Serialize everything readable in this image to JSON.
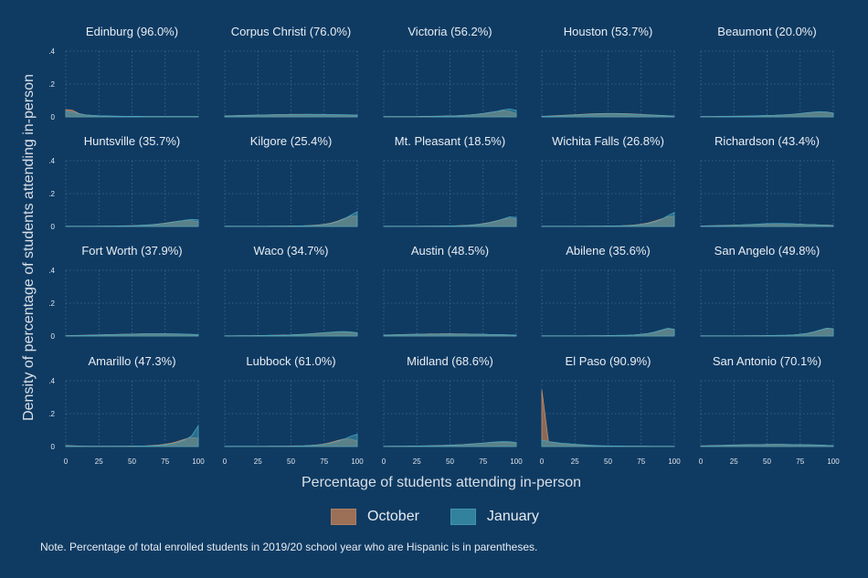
{
  "chart_data": {
    "type": "area",
    "ylabel": "Density of percentage of students attending in-person",
    "xlabel": "Percentage of students attending in-person",
    "xlim": [
      0,
      100
    ],
    "ylim": [
      0,
      0.4
    ],
    "x_ticks": [
      "0",
      "25",
      "50",
      "75",
      "100"
    ],
    "y_ticks": [
      "0",
      ".2",
      ".4"
    ],
    "x_tick_values": [
      0,
      25,
      50,
      75,
      100
    ],
    "y_tick_values": [
      0,
      0.2,
      0.4
    ],
    "grid": true,
    "legend_position": "bottom",
    "series": [
      {
        "name": "October",
        "color": "#b57a55"
      },
      {
        "name": "January",
        "color": "#3a8fa8"
      }
    ],
    "x": [
      0,
      5,
      10,
      15,
      20,
      25,
      30,
      35,
      40,
      45,
      50,
      55,
      60,
      65,
      70,
      75,
      80,
      85,
      90,
      95,
      100
    ],
    "panels": [
      {
        "title": "Edinburg (96.0%)",
        "october": [
          0.045,
          0.04,
          0.02,
          0.012,
          0.008,
          0.006,
          0.005,
          0.004,
          0.003,
          0.003,
          0.002,
          0.002,
          0.002,
          0.002,
          0.002,
          0.002,
          0.002,
          0.002,
          0.002,
          0.002,
          0.002
        ],
        "january": [
          0.035,
          0.03,
          0.018,
          0.012,
          0.009,
          0.007,
          0.006,
          0.005,
          0.004,
          0.003,
          0.003,
          0.003,
          0.002,
          0.002,
          0.002,
          0.002,
          0.002,
          0.002,
          0.002,
          0.002,
          0.002
        ]
      },
      {
        "title": "Corpus Christi (76.0%)",
        "october": [
          0.006,
          0.007,
          0.008,
          0.009,
          0.01,
          0.011,
          0.012,
          0.013,
          0.014,
          0.014,
          0.015,
          0.015,
          0.015,
          0.015,
          0.014,
          0.014,
          0.013,
          0.012,
          0.011,
          0.01,
          0.008
        ],
        "january": [
          0.005,
          0.006,
          0.007,
          0.008,
          0.009,
          0.01,
          0.011,
          0.012,
          0.013,
          0.013,
          0.014,
          0.014,
          0.015,
          0.015,
          0.015,
          0.015,
          0.014,
          0.014,
          0.013,
          0.012,
          0.011
        ]
      },
      {
        "title": "Victoria (56.2%)",
        "october": [
          0.002,
          0.002,
          0.002,
          0.002,
          0.002,
          0.002,
          0.003,
          0.003,
          0.004,
          0.005,
          0.006,
          0.007,
          0.009,
          0.012,
          0.016,
          0.021,
          0.027,
          0.033,
          0.037,
          0.034,
          0.02
        ],
        "january": [
          0.001,
          0.001,
          0.001,
          0.001,
          0.001,
          0.002,
          0.002,
          0.002,
          0.003,
          0.004,
          0.005,
          0.006,
          0.008,
          0.011,
          0.015,
          0.02,
          0.026,
          0.033,
          0.042,
          0.048,
          0.04
        ]
      },
      {
        "title": "Houston (53.7%)",
        "october": [
          0.004,
          0.005,
          0.007,
          0.009,
          0.011,
          0.013,
          0.015,
          0.017,
          0.019,
          0.02,
          0.021,
          0.021,
          0.02,
          0.019,
          0.017,
          0.015,
          0.013,
          0.011,
          0.009,
          0.007,
          0.005
        ],
        "january": [
          0.003,
          0.004,
          0.005,
          0.007,
          0.009,
          0.011,
          0.013,
          0.015,
          0.017,
          0.018,
          0.019,
          0.019,
          0.018,
          0.017,
          0.016,
          0.014,
          0.012,
          0.01,
          0.008,
          0.006,
          0.004
        ]
      },
      {
        "title": "Beaumont (20.0%)",
        "october": [
          0.002,
          0.002,
          0.002,
          0.003,
          0.003,
          0.004,
          0.004,
          0.005,
          0.006,
          0.007,
          0.008,
          0.009,
          0.011,
          0.013,
          0.016,
          0.02,
          0.024,
          0.028,
          0.03,
          0.028,
          0.022
        ],
        "january": [
          0.002,
          0.002,
          0.002,
          0.002,
          0.003,
          0.003,
          0.004,
          0.005,
          0.006,
          0.007,
          0.008,
          0.009,
          0.011,
          0.013,
          0.016,
          0.02,
          0.025,
          0.029,
          0.031,
          0.03,
          0.024
        ]
      },
      {
        "title": "Huntsville (35.7%)",
        "october": [
          0.001,
          0.001,
          0.001,
          0.001,
          0.001,
          0.002,
          0.002,
          0.002,
          0.003,
          0.004,
          0.005,
          0.006,
          0.008,
          0.011,
          0.015,
          0.02,
          0.026,
          0.032,
          0.036,
          0.035,
          0.028
        ],
        "january": [
          0.001,
          0.001,
          0.001,
          0.001,
          0.001,
          0.001,
          0.002,
          0.002,
          0.003,
          0.003,
          0.004,
          0.006,
          0.008,
          0.01,
          0.014,
          0.018,
          0.024,
          0.031,
          0.038,
          0.043,
          0.04
        ]
      },
      {
        "title": "Kilgore (25.4%)",
        "october": [
          0.001,
          0.001,
          0.001,
          0.001,
          0.001,
          0.001,
          0.001,
          0.002,
          0.002,
          0.002,
          0.003,
          0.003,
          0.004,
          0.006,
          0.009,
          0.013,
          0.02,
          0.032,
          0.048,
          0.062,
          0.065
        ],
        "january": [
          0.001,
          0.001,
          0.001,
          0.001,
          0.001,
          0.001,
          0.001,
          0.001,
          0.002,
          0.002,
          0.002,
          0.003,
          0.004,
          0.005,
          0.007,
          0.011,
          0.017,
          0.028,
          0.045,
          0.068,
          0.09
        ]
      },
      {
        "title": "Mt. Pleasant (18.5%)",
        "october": [
          0.001,
          0.001,
          0.001,
          0.001,
          0.001,
          0.001,
          0.002,
          0.002,
          0.002,
          0.003,
          0.003,
          0.004,
          0.006,
          0.008,
          0.012,
          0.017,
          0.024,
          0.034,
          0.044,
          0.05,
          0.045
        ],
        "january": [
          0.001,
          0.001,
          0.001,
          0.001,
          0.001,
          0.001,
          0.001,
          0.002,
          0.002,
          0.002,
          0.003,
          0.004,
          0.005,
          0.007,
          0.01,
          0.015,
          0.022,
          0.032,
          0.045,
          0.058,
          0.055
        ]
      },
      {
        "title": "Wichita Falls (26.8%)",
        "october": [
          0.001,
          0.001,
          0.001,
          0.001,
          0.001,
          0.001,
          0.001,
          0.002,
          0.002,
          0.002,
          0.003,
          0.003,
          0.004,
          0.006,
          0.009,
          0.014,
          0.021,
          0.032,
          0.045,
          0.058,
          0.062
        ],
        "january": [
          0.001,
          0.001,
          0.001,
          0.001,
          0.001,
          0.001,
          0.001,
          0.001,
          0.002,
          0.002,
          0.002,
          0.003,
          0.004,
          0.005,
          0.007,
          0.011,
          0.017,
          0.027,
          0.042,
          0.065,
          0.085
        ]
      },
      {
        "title": "Richardson (43.4%)",
        "october": [
          0.003,
          0.004,
          0.005,
          0.006,
          0.007,
          0.008,
          0.009,
          0.011,
          0.012,
          0.014,
          0.015,
          0.016,
          0.016,
          0.016,
          0.015,
          0.014,
          0.012,
          0.011,
          0.009,
          0.008,
          0.006
        ],
        "january": [
          0.002,
          0.003,
          0.004,
          0.005,
          0.006,
          0.007,
          0.009,
          0.011,
          0.013,
          0.015,
          0.017,
          0.018,
          0.018,
          0.017,
          0.016,
          0.014,
          0.012,
          0.01,
          0.008,
          0.007,
          0.005
        ]
      },
      {
        "title": "Fort Worth (37.9%)",
        "october": [
          0.002,
          0.003,
          0.004,
          0.005,
          0.006,
          0.007,
          0.008,
          0.009,
          0.01,
          0.011,
          0.012,
          0.013,
          0.014,
          0.014,
          0.014,
          0.014,
          0.013,
          0.012,
          0.011,
          0.009,
          0.007
        ],
        "january": [
          0.002,
          0.002,
          0.003,
          0.004,
          0.005,
          0.006,
          0.007,
          0.008,
          0.009,
          0.01,
          0.011,
          0.012,
          0.013,
          0.014,
          0.014,
          0.014,
          0.013,
          0.013,
          0.012,
          0.01,
          0.008
        ]
      },
      {
        "title": "Waco (34.7%)",
        "october": [
          0.001,
          0.001,
          0.002,
          0.002,
          0.002,
          0.003,
          0.003,
          0.004,
          0.005,
          0.006,
          0.007,
          0.009,
          0.011,
          0.014,
          0.017,
          0.02,
          0.023,
          0.025,
          0.025,
          0.022,
          0.017
        ],
        "january": [
          0.001,
          0.001,
          0.001,
          0.002,
          0.002,
          0.002,
          0.003,
          0.004,
          0.004,
          0.005,
          0.007,
          0.008,
          0.01,
          0.013,
          0.016,
          0.02,
          0.023,
          0.026,
          0.027,
          0.025,
          0.02
        ]
      },
      {
        "title": "Austin (48.5%)",
        "october": [
          0.006,
          0.007,
          0.008,
          0.009,
          0.01,
          0.011,
          0.012,
          0.013,
          0.013,
          0.014,
          0.014,
          0.013,
          0.013,
          0.012,
          0.011,
          0.01,
          0.009,
          0.008,
          0.007,
          0.006,
          0.005
        ],
        "january": [
          0.005,
          0.006,
          0.007,
          0.008,
          0.009,
          0.01,
          0.011,
          0.011,
          0.012,
          0.012,
          0.012,
          0.012,
          0.012,
          0.011,
          0.011,
          0.01,
          0.009,
          0.009,
          0.008,
          0.007,
          0.006
        ]
      },
      {
        "title": "Abilene (35.6%)",
        "october": [
          0.001,
          0.001,
          0.001,
          0.001,
          0.001,
          0.001,
          0.001,
          0.002,
          0.002,
          0.002,
          0.003,
          0.003,
          0.004,
          0.005,
          0.007,
          0.01,
          0.015,
          0.022,
          0.032,
          0.042,
          0.04
        ],
        "january": [
          0.001,
          0.001,
          0.001,
          0.001,
          0.001,
          0.001,
          0.001,
          0.001,
          0.002,
          0.002,
          0.002,
          0.003,
          0.004,
          0.005,
          0.007,
          0.01,
          0.015,
          0.024,
          0.036,
          0.047,
          0.042
        ]
      },
      {
        "title": "San Angelo (49.8%)",
        "october": [
          0.001,
          0.001,
          0.001,
          0.001,
          0.001,
          0.001,
          0.001,
          0.002,
          0.002,
          0.002,
          0.003,
          0.003,
          0.004,
          0.005,
          0.007,
          0.01,
          0.015,
          0.023,
          0.034,
          0.044,
          0.043
        ],
        "january": [
          0.001,
          0.001,
          0.001,
          0.001,
          0.001,
          0.001,
          0.001,
          0.001,
          0.002,
          0.002,
          0.002,
          0.003,
          0.004,
          0.005,
          0.007,
          0.01,
          0.016,
          0.025,
          0.037,
          0.048,
          0.045
        ]
      },
      {
        "title": "Amarillo (47.3%)",
        "october": [
          0.006,
          0.005,
          0.003,
          0.002,
          0.002,
          0.002,
          0.002,
          0.002,
          0.002,
          0.002,
          0.003,
          0.003,
          0.004,
          0.006,
          0.009,
          0.014,
          0.021,
          0.032,
          0.045,
          0.055,
          0.05
        ],
        "january": [
          0.003,
          0.003,
          0.002,
          0.002,
          0.001,
          0.001,
          0.001,
          0.001,
          0.002,
          0.002,
          0.002,
          0.003,
          0.003,
          0.004,
          0.006,
          0.01,
          0.016,
          0.026,
          0.04,
          0.065,
          0.125
        ]
      },
      {
        "title": "Lubbock (61.0%)",
        "october": [
          0.001,
          0.001,
          0.001,
          0.001,
          0.001,
          0.001,
          0.001,
          0.002,
          0.002,
          0.002,
          0.003,
          0.004,
          0.005,
          0.007,
          0.01,
          0.015,
          0.024,
          0.036,
          0.046,
          0.045,
          0.035
        ],
        "january": [
          0.001,
          0.001,
          0.001,
          0.001,
          0.001,
          0.001,
          0.001,
          0.001,
          0.002,
          0.002,
          0.002,
          0.003,
          0.004,
          0.006,
          0.009,
          0.013,
          0.02,
          0.031,
          0.044,
          0.062,
          0.075
        ]
      },
      {
        "title": "Midland (68.6%)",
        "october": [
          0.001,
          0.002,
          0.002,
          0.002,
          0.003,
          0.003,
          0.004,
          0.005,
          0.006,
          0.007,
          0.008,
          0.01,
          0.012,
          0.015,
          0.018,
          0.021,
          0.024,
          0.026,
          0.026,
          0.024,
          0.02
        ],
        "january": [
          0.001,
          0.001,
          0.002,
          0.002,
          0.002,
          0.003,
          0.003,
          0.004,
          0.005,
          0.006,
          0.008,
          0.009,
          0.011,
          0.014,
          0.017,
          0.021,
          0.025,
          0.028,
          0.03,
          0.029,
          0.025
        ]
      },
      {
        "title": "El Paso (90.9%)",
        "october": [
          0.345,
          0.03,
          0.02,
          0.015,
          0.012,
          0.009,
          0.007,
          0.005,
          0.004,
          0.003,
          0.003,
          0.002,
          0.002,
          0.002,
          0.002,
          0.002,
          0.001,
          0.001,
          0.001,
          0.001,
          0.001
        ],
        "january": [
          0.04,
          0.03,
          0.025,
          0.02,
          0.017,
          0.014,
          0.011,
          0.008,
          0.006,
          0.005,
          0.004,
          0.003,
          0.003,
          0.002,
          0.002,
          0.002,
          0.002,
          0.001,
          0.001,
          0.001,
          0.001
        ]
      },
      {
        "title": "San Antonio (70.1%)",
        "october": [
          0.004,
          0.005,
          0.006,
          0.007,
          0.008,
          0.009,
          0.01,
          0.011,
          0.012,
          0.012,
          0.013,
          0.013,
          0.013,
          0.012,
          0.012,
          0.011,
          0.01,
          0.009,
          0.008,
          0.007,
          0.005
        ],
        "january": [
          0.003,
          0.004,
          0.005,
          0.006,
          0.007,
          0.008,
          0.009,
          0.01,
          0.011,
          0.012,
          0.012,
          0.013,
          0.013,
          0.013,
          0.012,
          0.011,
          0.011,
          0.01,
          0.009,
          0.007,
          0.006
        ]
      }
    ]
  },
  "note": "Note. Percentage of total enrolled students in 2019/20 school year who are Hispanic is in parentheses."
}
